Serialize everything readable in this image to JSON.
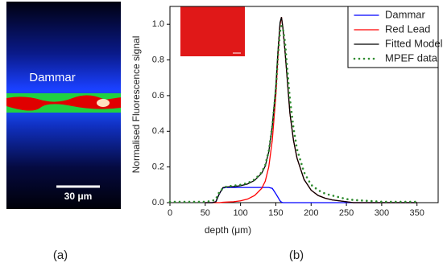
{
  "image_panel": {
    "label": "Dammar",
    "scale_bar": "30 μm",
    "caption": "(a)"
  },
  "chart_data": {
    "type": "line",
    "caption": "(b)",
    "x_label": "depth (μm)",
    "y_label": "Normalised Fluorescence signal",
    "x": [
      0,
      10,
      20,
      30,
      40,
      50,
      60,
      65,
      70,
      75,
      80,
      90,
      100,
      110,
      120,
      130,
      135,
      140,
      145,
      150,
      153,
      156,
      158,
      160,
      163,
      166,
      170,
      175,
      180,
      190,
      200,
      210,
      220,
      230,
      240,
      250,
      260,
      280,
      300,
      320,
      350
    ],
    "series": [
      {
        "name": "Dammar",
        "color": "#0000ff",
        "line_style": "solid",
        "values": [
          null,
          null,
          null,
          null,
          null,
          0,
          0,
          0.005,
          0.05,
          0.082,
          0.085,
          0.085,
          0.085,
          0.085,
          0.085,
          0.085,
          0.085,
          0.085,
          0.08,
          0.05,
          0.03,
          0.01,
          0.003,
          0,
          0,
          0,
          0,
          0,
          0,
          0,
          0,
          0,
          0,
          0,
          0,
          0,
          0,
          0,
          0,
          0,
          0
        ]
      },
      {
        "name": "Red Lead",
        "color": "#ff0000",
        "line_style": "solid",
        "values": [
          null,
          null,
          null,
          null,
          null,
          0,
          0,
          0,
          0,
          0.002,
          0.003,
          0.005,
          0.01,
          0.02,
          0.04,
          0.08,
          0.12,
          0.2,
          0.35,
          0.6,
          0.82,
          1.0,
          1.04,
          0.98,
          0.85,
          0.7,
          0.5,
          0.35,
          0.25,
          0.13,
          0.07,
          0.04,
          0.025,
          0.015,
          0.01,
          0.005,
          0,
          0,
          0,
          0,
          0
        ]
      },
      {
        "name": "Fitted Model",
        "color": "#000000",
        "line_style": "solid",
        "values": [
          null,
          null,
          null,
          null,
          null,
          0,
          0,
          0.005,
          0.05,
          0.084,
          0.088,
          0.09,
          0.095,
          0.105,
          0.125,
          0.165,
          0.205,
          0.285,
          0.43,
          0.65,
          0.85,
          1.01,
          1.04,
          0.98,
          0.85,
          0.7,
          0.5,
          0.35,
          0.25,
          0.13,
          0.07,
          0.04,
          0.025,
          0.015,
          0.01,
          0.005,
          0,
          0,
          0,
          0,
          0
        ]
      },
      {
        "name": "MPEF data",
        "color": "#2e8b2e",
        "line_style": "dotted",
        "values": [
          0.005,
          0.005,
          0.005,
          0.005,
          0.005,
          0.005,
          0.01,
          0.02,
          0.06,
          0.08,
          0.09,
          0.095,
          0.1,
          0.11,
          0.13,
          0.17,
          0.21,
          0.29,
          0.43,
          0.63,
          0.82,
          0.96,
          0.99,
          0.98,
          0.9,
          0.76,
          0.58,
          0.42,
          0.3,
          0.17,
          0.1,
          0.07,
          0.05,
          0.04,
          0.03,
          0.02,
          0.015,
          0.01,
          0.005,
          0.005,
          0.005
        ]
      }
    ],
    "xlim": [
      0,
      380
    ],
    "ylim": [
      0,
      1.1
    ],
    "xticks": [
      0,
      50,
      100,
      150,
      200,
      250,
      300,
      350
    ],
    "yticks": [
      {
        "value": 0,
        "label": "0.0"
      },
      0.2,
      0.4,
      0.6,
      0.8,
      {
        "value": 1,
        "label": "1.0"
      }
    ],
    "legend": "upper right"
  }
}
